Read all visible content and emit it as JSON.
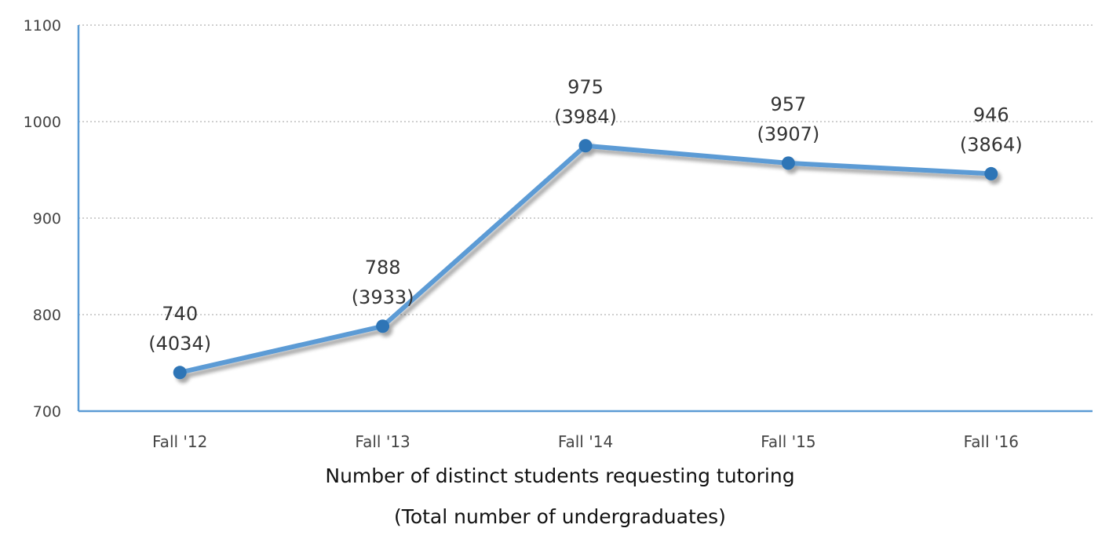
{
  "chart_data": {
    "type": "line",
    "categories": [
      "Fall '12",
      "Fall '13",
      "Fall '14",
      "Fall '15",
      "Fall '16"
    ],
    "series": [
      {
        "values": [
          740,
          788,
          975,
          957,
          946
        ]
      }
    ],
    "point_labels": [
      [
        "740",
        "(4034)"
      ],
      [
        "788",
        "(3933)"
      ],
      [
        "975",
        "(3984)"
      ],
      [
        "957",
        "(3907)"
      ],
      [
        "946",
        "(3864)"
      ]
    ],
    "secondary_values": [
      4034,
      3933,
      3984,
      3907,
      3864
    ],
    "xlabel_lines": [
      "Number of distinct students requesting tutoring",
      "(Total number of undergraduates)"
    ],
    "ylabel": "",
    "ylim": [
      700,
      1100
    ],
    "yticks": [
      700,
      800,
      900,
      1000,
      1100
    ],
    "grid": "horizontal dotted",
    "legend": "none",
    "colors": {
      "line": "#5b9bd5",
      "marker": "#2e75b6",
      "axis": "#5b9bd5",
      "grid": "#bfbfbf",
      "tick_text": "#444444",
      "label_text": "#333333"
    }
  }
}
